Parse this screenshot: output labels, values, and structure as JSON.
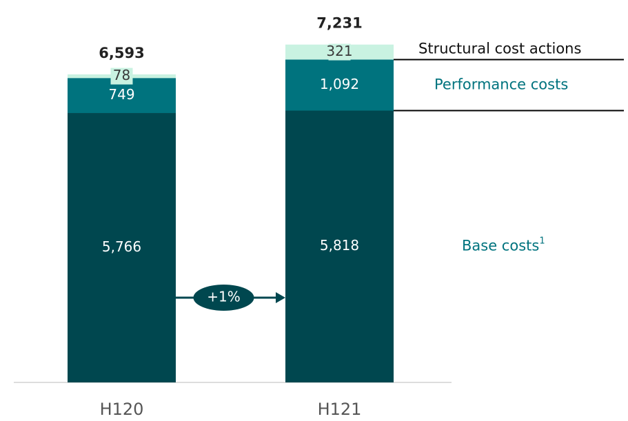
{
  "chart_data": {
    "type": "stacked_bar",
    "categories": [
      "H120",
      "H121"
    ],
    "series": [
      {
        "name": "Base costs",
        "name_superscript": "1",
        "color": "#00474f",
        "label_color": "#ffffff",
        "values": [
          5766,
          5818
        ],
        "value_labels": [
          "5,766",
          "5,818"
        ]
      },
      {
        "name": "Performance costs",
        "color": "#00737e",
        "label_color": "#ffffff",
        "values": [
          749,
          1092
        ],
        "value_labels": [
          "749",
          "1,092"
        ]
      },
      {
        "name": "Structural cost actions",
        "color": "#c9f2e1",
        "label_color": "#3a3a3a",
        "values": [
          78,
          321
        ],
        "value_labels": [
          "78",
          "321"
        ]
      }
    ],
    "totals": [
      6593,
      7231
    ],
    "total_labels": [
      "6,593",
      "7,231"
    ],
    "annotation": "+1%",
    "ylim": [
      0,
      7300
    ]
  }
}
